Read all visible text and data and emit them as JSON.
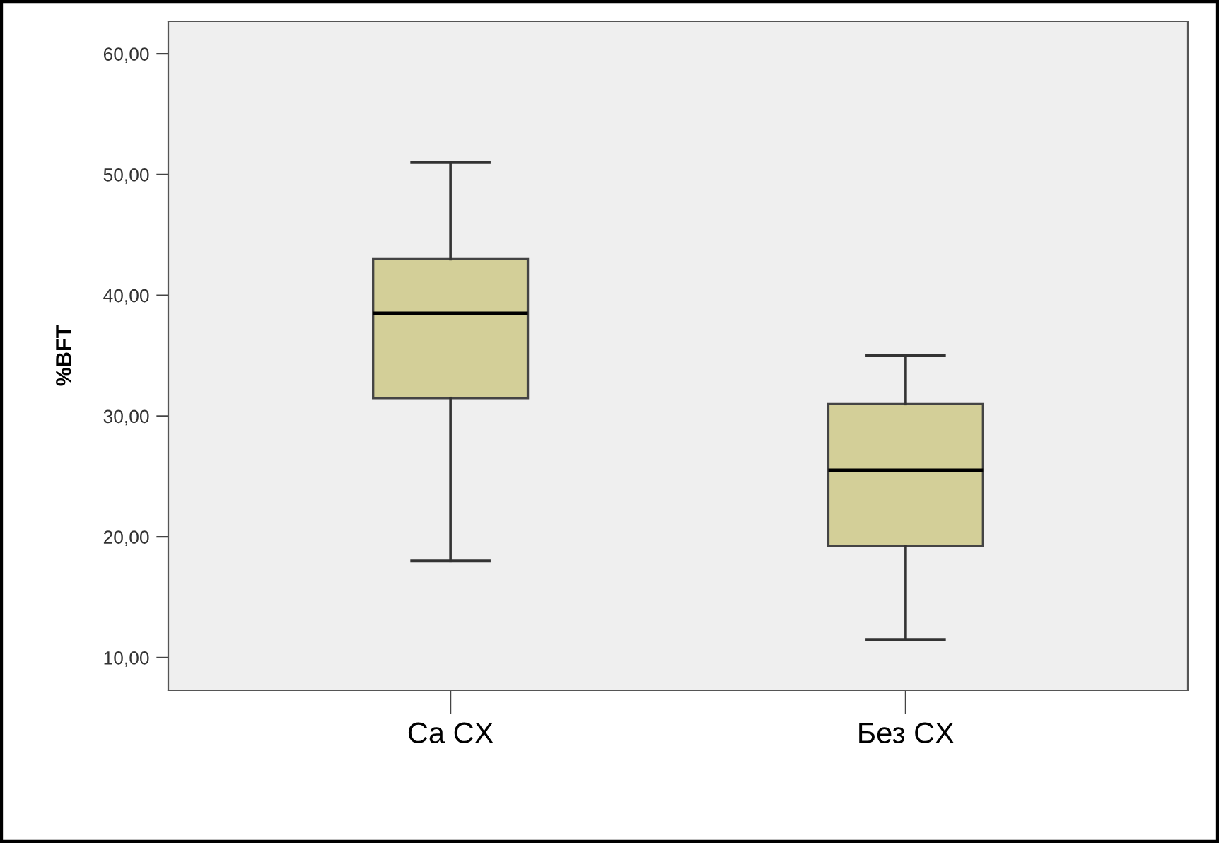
{
  "chart_data": {
    "type": "box",
    "ylabel": "%BFT",
    "categories": [
      "Ca CX",
      "Без CX"
    ],
    "boxes": [
      {
        "low": 18.0,
        "q1": 31.5,
        "median": 38.5,
        "q3": 43.0,
        "high": 51.0
      },
      {
        "low": 11.5,
        "q1": 19.25,
        "median": 25.5,
        "q3": 31.0,
        "high": 35.0
      }
    ],
    "color": "#d3cf98",
    "ylim": [
      7.3,
      62.7
    ],
    "yticks": [
      {
        "value": 10,
        "label": "10,00"
      },
      {
        "value": 20,
        "label": "20,00"
      },
      {
        "value": 30,
        "label": "30,00"
      },
      {
        "value": 40,
        "label": "40,00"
      },
      {
        "value": 50,
        "label": "50,00"
      },
      {
        "value": 60,
        "label": "60,00"
      }
    ],
    "grid": false
  }
}
